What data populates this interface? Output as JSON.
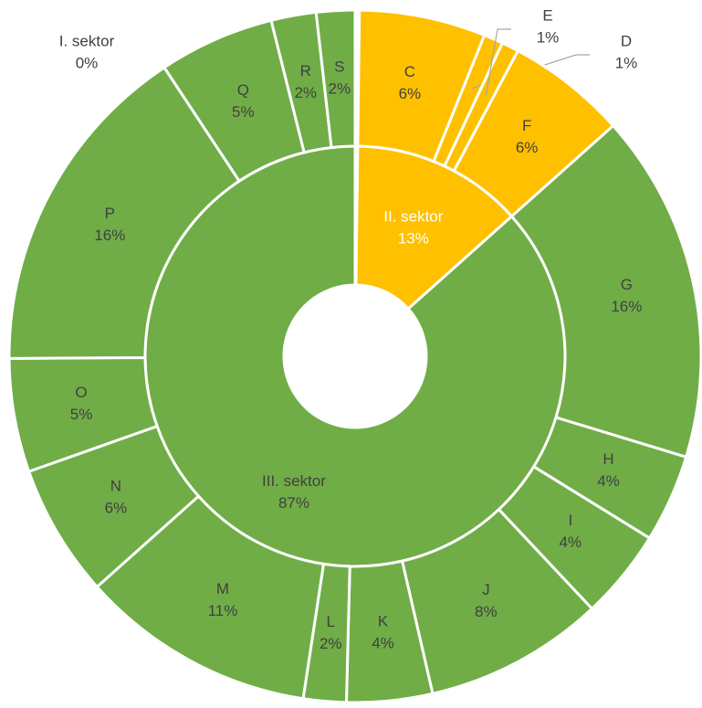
{
  "chart_data": {
    "type": "sunburst",
    "categories": [
      "I. sektor",
      "II. sektor",
      "III. sektor"
    ],
    "values": [
      0.2,
      13.2,
      86.6
    ],
    "value_labels": [
      "0%",
      "13%",
      "87%"
    ],
    "colors": [
      "#ffffff",
      "#ffc000",
      "#70ad47"
    ],
    "children": [
      {
        "categories": [],
        "values": [],
        "value_labels": []
      },
      {
        "categories": [
          "C",
          "D",
          "E",
          "F"
        ],
        "values": [
          5.9,
          0.9,
          0.8,
          5.6
        ],
        "value_labels": [
          "6%",
          "1%",
          "1%",
          "6%"
        ]
      },
      {
        "categories": [
          "G",
          "H",
          "I",
          "J",
          "K",
          "L",
          "M",
          "N",
          "O",
          "P",
          "Q",
          "R",
          "S"
        ],
        "values": [
          16.3,
          4.1,
          4.2,
          8.4,
          4.0,
          2.0,
          11.0,
          6.2,
          5.3,
          15.8,
          5.4,
          2.1,
          1.8
        ],
        "value_labels": [
          "16%",
          "4%",
          "4%",
          "8%",
          "4%",
          "2%",
          "11%",
          "6%",
          "5%",
          "16%",
          "5%",
          "2%",
          "2%"
        ]
      }
    ]
  }
}
